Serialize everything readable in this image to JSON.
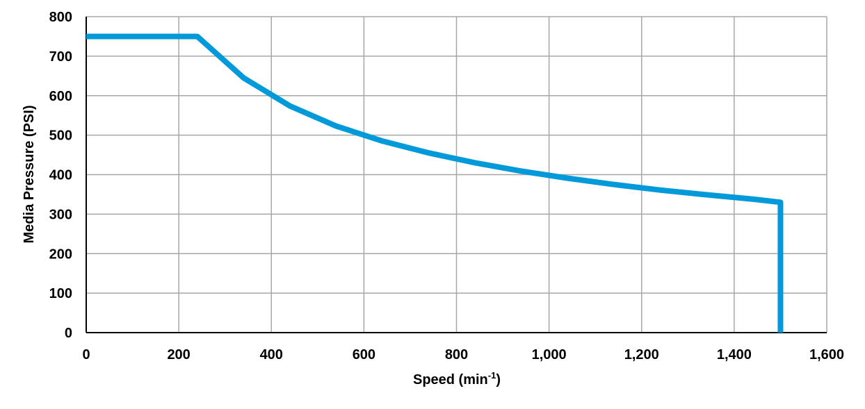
{
  "chart_data": {
    "type": "line",
    "title": "",
    "xlabel": "Speed (min",
    "xlabel_sup": "-1",
    "xlabel_close": ")",
    "ylabel": "Media Pressure (PSI)",
    "xlim": [
      0,
      1600
    ],
    "ylim": [
      0,
      800
    ],
    "grid": true,
    "x_ticks": [
      0,
      200,
      400,
      600,
      800,
      1000,
      1200,
      1400,
      1600
    ],
    "x_tick_labels": [
      "0",
      "200",
      "400",
      "600",
      "800",
      "1,000",
      "1,200",
      "1,400",
      "1,600"
    ],
    "y_ticks": [
      0,
      100,
      200,
      300,
      400,
      500,
      600,
      700,
      800
    ],
    "y_tick_labels": [
      "0",
      "100",
      "200",
      "300",
      "400",
      "500",
      "600",
      "700",
      "800"
    ],
    "series": [
      {
        "color": "#009ADA",
        "x": [
          0,
          240,
          340,
          440,
          540,
          640,
          740,
          840,
          940,
          1040,
          1140,
          1240,
          1340,
          1440,
          1500,
          1500
        ],
        "y": [
          750,
          750,
          645,
          574,
          523,
          485,
          455,
          430,
          409,
          391,
          375,
          361,
          349,
          338,
          330,
          0
        ]
      }
    ]
  }
}
